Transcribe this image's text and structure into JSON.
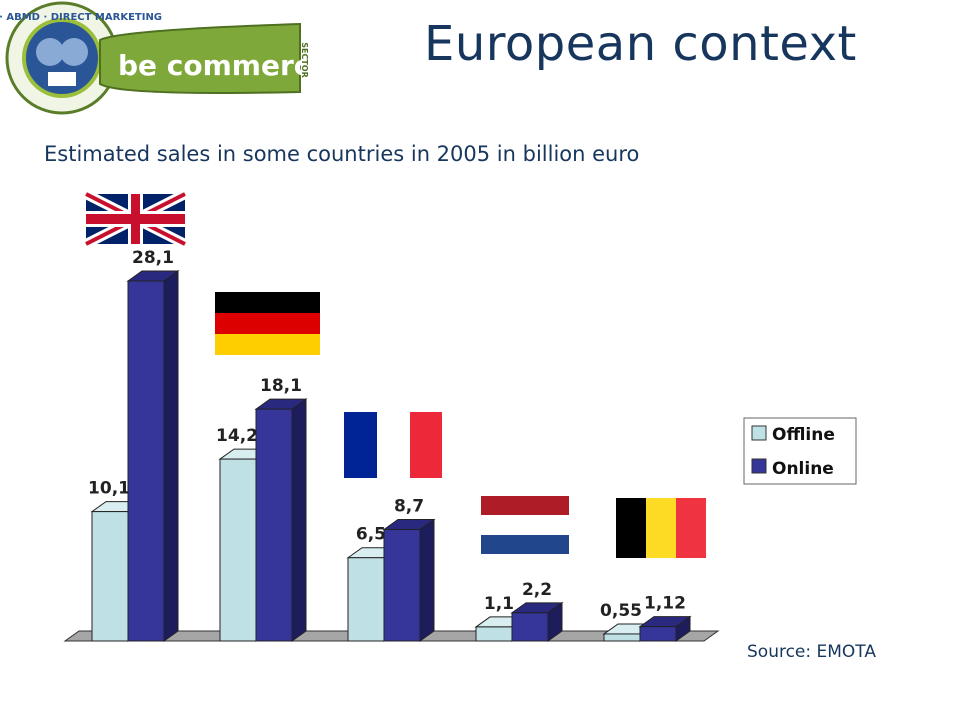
{
  "header": {
    "title": "European context",
    "subtitle": "Estimated sales in some countries in 2005 in billion euro",
    "source": "Source: EMOTA"
  },
  "logo": {
    "ring_text": "BDMV · ABMD · DIRECT MARKETING",
    "wordmark": "be commerce",
    "tag": "SECTOR"
  },
  "flags": [
    {
      "name": "uk-flag",
      "colors": [
        "#012169",
        "#ffffff",
        "#c8102e"
      ]
    },
    {
      "name": "germany-flag",
      "colors": [
        "#000000",
        "#dd0000",
        "#ffce00"
      ]
    },
    {
      "name": "france-flag",
      "colors": [
        "#002395",
        "#ffffff",
        "#ed2939"
      ]
    },
    {
      "name": "netherlands-flag",
      "colors": [
        "#ae1c28",
        "#ffffff",
        "#21468b"
      ]
    },
    {
      "name": "belgium-flag",
      "colors": [
        "#000000",
        "#fdda24",
        "#ef3340"
      ]
    }
  ],
  "colors": {
    "offline": "#bfe1e6",
    "online": "#36359a",
    "title": "#17365d"
  },
  "chart_data": {
    "type": "bar",
    "categories": [
      "",
      "",
      "",
      "",
      ""
    ],
    "series": [
      {
        "name": "Offline",
        "values": [
          10.1,
          14.2,
          6.5,
          1.1,
          0.55
        ],
        "labels": [
          "10,1",
          "14,2",
          "6,5",
          "1,1",
          "0,55"
        ]
      },
      {
        "name": "Online",
        "values": [
          28.1,
          18.1,
          8.7,
          2.2,
          1.12
        ],
        "labels": [
          "28,1",
          "18,1",
          "8,7",
          "2,2",
          "1,12"
        ]
      }
    ],
    "legend": [
      "Offline",
      "Online"
    ],
    "legend_position": "right",
    "ylim": [
      0,
      28.1
    ],
    "grid": false,
    "three_d": true
  }
}
